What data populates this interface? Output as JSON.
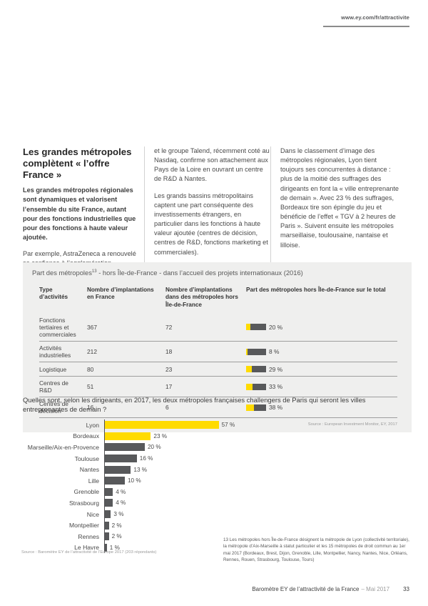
{
  "header": {
    "link": "www.ey.com/fr/attractivite"
  },
  "article": {
    "heading": "Les grandes métropoles complètent « l’offre France »",
    "lead": "Les grandes métropoles régionales sont dynamiques et valorisent l’ensemble du site France, autant pour des fonctions industrielles que pour des fonctions à haute valeur ajoutée.",
    "col1_paras": [
      "Par exemple, AstraZeneca a renouvelé sa confiance à l’agglomération dunkerquoise,"
    ],
    "col2_paras": [
      "et le groupe Talend, récemment coté au Nasdaq, confirme son attachement aux Pays de la Loire en ouvrant un centre de R&D à Nantes.",
      "Les grands bassins métropolitains captent une part conséquente des investissements étrangers, en particulier dans les fonctions à haute valeur ajoutée (centres de décision, centres de R&D, fonctions marketing et commerciales)."
    ],
    "col3_paras": [
      "Dans le classement d’image des métropoles régionales, Lyon tient toujours ses concurrentes à distance : plus de la moitié des suffrages des dirigeants en font la « ville entreprenante de demain ». Avec 23 % des suffrages, Bordeaux tire son épingle du jeu et bénéficie de l’effet « TGV à 2 heures de Paris ». Suivent ensuite les métropoles marseillaise, toulousaine, nantaise et lilloise."
    ]
  },
  "table": {
    "title_prefix": "Part des métropoles",
    "footnote_ref": "13",
    "title_suffix": " - hors Île-de-France - dans l’accueil des projets internationaux (2016)",
    "headers": [
      "Type d’activités",
      "Nombre d’implantations en France",
      "Nombre d’implantations dans des métropoles hors Île-de-France",
      "Part des métropoles hors Île-de-France sur le total"
    ],
    "rows": [
      {
        "activity": "Fonctions tertiaires et commerciales",
        "implantations_france": "367",
        "implantations_metropoles": "72",
        "share_pct": 20,
        "share_label": "20 %"
      },
      {
        "activity": "Activités industrielles",
        "implantations_france": "212",
        "implantations_metropoles": "18",
        "share_pct": 8,
        "share_label": "8 %"
      },
      {
        "activity": "Logistique",
        "implantations_france": "80",
        "implantations_metropoles": "23",
        "share_pct": 29,
        "share_label": "29 %"
      },
      {
        "activity": "Centres de R&D",
        "implantations_france": "51",
        "implantations_metropoles": "17",
        "share_pct": 33,
        "share_label": "33 %"
      },
      {
        "activity": "Centres de décision",
        "implantations_france": "16",
        "implantations_metropoles": "6",
        "share_pct": 38,
        "share_label": "38 %"
      }
    ],
    "source": "Source : European Investment Monitor, EY, 2017"
  },
  "chart_data": {
    "type": "bar",
    "orientation": "horizontal",
    "title": "Quelles sont, selon les dirigeants, en 2017, les deux métropoles françaises challengers de Paris qui seront les villes entreprenantes de demain ?",
    "categories": [
      "Lyon",
      "Bordeaux",
      "Marseille/Aix-en-Provence",
      "Toulouse",
      "Nantes",
      "Lille",
      "Grenoble",
      "Strasbourg",
      "Nice",
      "Montpellier",
      "Rennes",
      "Le Havre"
    ],
    "values": [
      57,
      23,
      20,
      16,
      13,
      10,
      4,
      4,
      3,
      2,
      2,
      1
    ],
    "unit": "%",
    "highlighted_categories": [
      "Lyon",
      "Bordeaux"
    ],
    "highlight_color": "#ffdb00",
    "bar_color": "#58595b",
    "xlim": [
      0,
      60
    ],
    "grid": false,
    "legend": false,
    "source": "Source : Baromètre EY de l’attractivité de l’Europe 2017 (203 répondants)"
  },
  "footnote": "13 Les métropoles hors Île-de-France désignent la métropole de Lyon (collectivité territoriale), la métropole d’Aix-Marseille à statut particulier et les 15 métropoles de droit commun au 1er mai 2017 (Bordeaux, Brest, Dijon, Grenoble, Lille, Montpellier, Nancy, Nantes, Nice, Orléans, Rennes, Rouen, Strasbourg, Toulouse, Tours)",
  "footer": {
    "title": "Baromètre EY de l’attractivité de la France",
    "date": "– Mai 2017",
    "page_number": "33"
  },
  "colors": {
    "accent_yellow": "#ffdb00",
    "dark_gray": "#58595b",
    "table_background": "#efefee"
  }
}
